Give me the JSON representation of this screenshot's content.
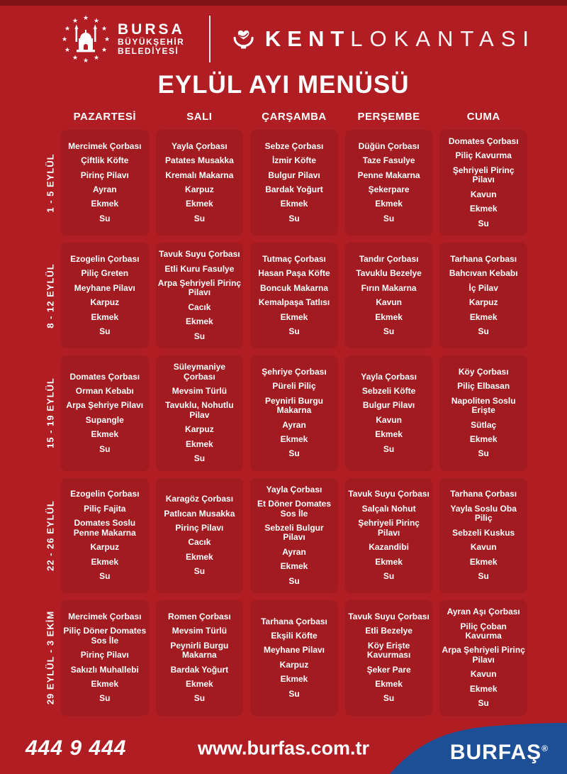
{
  "header": {
    "municipality": {
      "line1": "BURSA",
      "line2": "BÜYÜKŞEHİR",
      "line3": "BELEDİYESİ"
    },
    "brand": {
      "bold": "KENT",
      "light": "LOKANTASI"
    },
    "title": "EYLÜL AYI MENÜSÜ"
  },
  "icons": {
    "municipality_icon": "mosque-with-star-ring",
    "brand_icon": "heart-in-bowl",
    "registered_mark": "®"
  },
  "colors": {
    "page_bg": "#b01e24",
    "cell_bg": "#a21b20",
    "top_bar": "#7e1215",
    "footer_blue": "#1d4f97",
    "text": "#ffffff"
  },
  "menu": {
    "day_headers": [
      "PAZARTESİ",
      "SALI",
      "ÇARŞAMBA",
      "PERŞEMBE",
      "CUMA"
    ],
    "weeks": [
      {
        "date_range": "1 - 5 EYLÜL",
        "days": [
          [
            "Mercimek Çorbası",
            "Çiftlik Köfte",
            "Pirinç Pilavı",
            "Ayran",
            "Ekmek",
            "Su"
          ],
          [
            "Yayla Çorbası",
            "Patates Musakka",
            "Kremalı Makarna",
            "Karpuz",
            "Ekmek",
            "Su"
          ],
          [
            "Sebze Çorbası",
            "İzmir Köfte",
            "Bulgur Pilavı",
            "Bardak Yoğurt",
            "Ekmek",
            "Su"
          ],
          [
            "Düğün Çorbası",
            "Taze Fasulye",
            "Penne Makarna",
            "Şekerpare",
            "Ekmek",
            "Su"
          ],
          [
            "Domates Çorbası",
            "Piliç Kavurma",
            "Şehriyeli Pirinç Pilavı",
            "Kavun",
            "Ekmek",
            "Su"
          ]
        ]
      },
      {
        "date_range": "8 - 12 EYLÜL",
        "days": [
          [
            "Ezogelin Çorbası",
            "Piliç Greten",
            "Meyhane Pilavı",
            "Karpuz",
            "Ekmek",
            "Su"
          ],
          [
            "Tavuk Suyu Çorbası",
            "Etli Kuru Fasulye",
            "Arpa Şehriyeli Pirinç Pilavı",
            "Cacık",
            "Ekmek",
            "Su"
          ],
          [
            "Tutmaç Çorbası",
            "Hasan Paşa Köfte",
            "Boncuk Makarna",
            "Kemalpaşa Tatlısı",
            "Ekmek",
            "Su"
          ],
          [
            "Tandır Çorbası",
            "Tavuklu Bezelye",
            "Fırın Makarna",
            "Kavun",
            "Ekmek",
            "Su"
          ],
          [
            "Tarhana Çorbası",
            "Bahcıvan Kebabı",
            "İç Pilav",
            "Karpuz",
            "Ekmek",
            "Su"
          ]
        ]
      },
      {
        "date_range": "15 - 19 EYLÜL",
        "days": [
          [
            "Domates Çorbası",
            "Orman Kebabı",
            "Arpa Şehriye Pilavı",
            "Supangle",
            "Ekmek",
            "Su"
          ],
          [
            "Süleymaniye Çorbası",
            "Mevsim Türlü",
            "Tavuklu, Nohutlu Pilav",
            "Karpuz",
            "Ekmek",
            "Su"
          ],
          [
            "Şehriye Çorbası",
            "Püreli Piliç",
            "Peynirli Burgu Makarna",
            "Ayran",
            "Ekmek",
            "Su"
          ],
          [
            "Yayla Çorbası",
            "Sebzeli Köfte",
            "Bulgur Pilavı",
            "Kavun",
            "Ekmek",
            "Su"
          ],
          [
            "Köy Çorbası",
            "Piliç Elbasan",
            "Napoliten Soslu Erişte",
            "Sütlaç",
            "Ekmek",
            "Su"
          ]
        ]
      },
      {
        "date_range": "22 - 26 EYLÜL",
        "days": [
          [
            "Ezogelin Çorbası",
            "Piliç Fajita",
            "Domates Soslu Penne Makarna",
            "Karpuz",
            "Ekmek",
            "Su"
          ],
          [
            "Karagöz Çorbası",
            "Patlıcan Musakka",
            "Pirinç Pilavı",
            "Cacık",
            "Ekmek",
            "Su"
          ],
          [
            "Yayla Çorbası",
            "Et Döner Domates Sos İle",
            "Sebzeli Bulgur Pilavı",
            "Ayran",
            "Ekmek",
            "Su"
          ],
          [
            "Tavuk Suyu Çorbası",
            "Salçalı Nohut",
            "Şehriyeli Pirinç Pilavı",
            "Kazandibi",
            "Ekmek",
            "Su"
          ],
          [
            "Tarhana Çorbası",
            "Yayla Soslu Oba Piliç",
            "Sebzeli Kuskus",
            "Kavun",
            "Ekmek",
            "Su"
          ]
        ]
      },
      {
        "date_range": "29 EYLÜL - 3 EKİM",
        "days": [
          [
            "Mercimek Çorbası",
            "Piliç Döner Domates Sos İle",
            "Pirinç Pilavı",
            "Sakızlı Muhallebi",
            "Ekmek",
            "Su"
          ],
          [
            "Romen Çorbası",
            "Mevsim Türlü",
            "Peynirli Burgu Makarna",
            "Bardak Yoğurt",
            "Ekmek",
            "Su"
          ],
          [
            "Tarhana Çorbası",
            "Ekşili Köfte",
            "Meyhane Pilavı",
            "Karpuz",
            "Ekmek",
            "Su"
          ],
          [
            "Tavuk Suyu Çorbası",
            "Etli Bezelye",
            "Köy Erişte Kavurması",
            "Şeker Pare",
            "Ekmek",
            "Su"
          ],
          [
            "Ayran Aşı Çorbası",
            "Piliç Çoban Kavurma",
            "Arpa Şehriyeli Pirinç Pilavı",
            "Kavun",
            "Ekmek",
            "Su"
          ]
        ]
      }
    ]
  },
  "footer": {
    "phone": "444 9 444",
    "website": "www.burfas.com.tr",
    "brand": "BURFAŞ",
    "registered": "®"
  }
}
